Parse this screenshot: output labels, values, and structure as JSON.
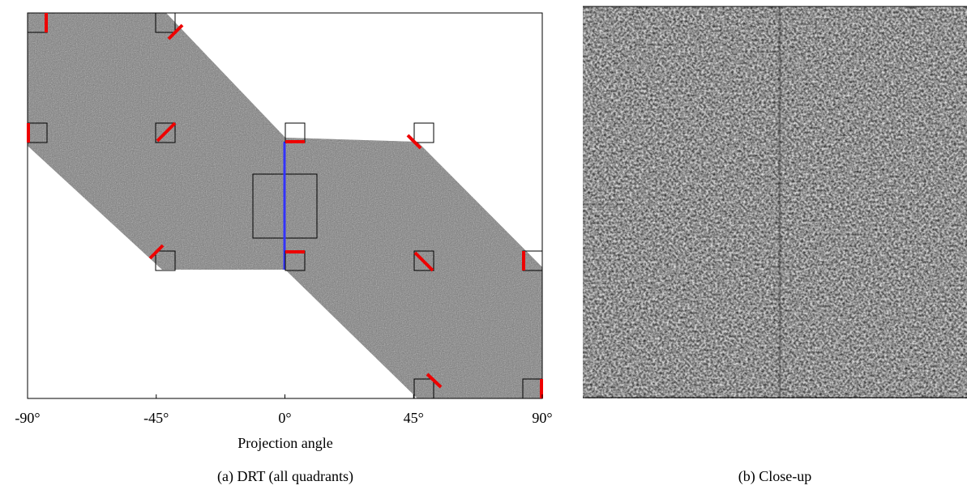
{
  "figure": {
    "panels": [
      {
        "caption": "(a) DRT (all quadrants)",
        "xlabel": "Projection angle",
        "xlim": [
          -90,
          90
        ],
        "xticks": [
          {
            "value": -90,
            "label": "-90°"
          },
          {
            "value": -45,
            "label": "-45°"
          },
          {
            "value": 0,
            "label": "0°"
          },
          {
            "value": 45,
            "label": "45°"
          },
          {
            "value": 90,
            "label": "90°"
          }
        ]
      },
      {
        "caption": "(b) Close-up"
      }
    ]
  }
}
